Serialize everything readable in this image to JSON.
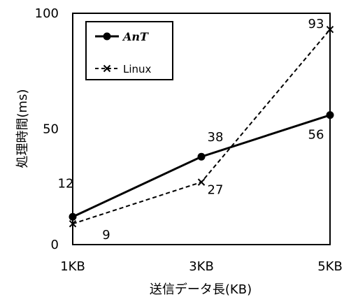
{
  "chart_data": {
    "type": "line",
    "categories": [
      "1KB",
      "3KB",
      "5KB"
    ],
    "xlabel": "送信データ長(KB)",
    "ylabel": "処理時間(ms)",
    "ylim": [
      0,
      100
    ],
    "yticks": [
      0,
      50,
      100
    ],
    "legend_position": "top-left",
    "grid": false,
    "series": [
      {
        "name": "AnT",
        "values": [
          12,
          38,
          56
        ],
        "data_labels": [
          "12",
          "38",
          "56"
        ],
        "color": "#000000",
        "line_style": "solid",
        "marker": "circle"
      },
      {
        "name": "Linux",
        "values": [
          9,
          27,
          93
        ],
        "data_labels": [
          "9",
          "27",
          "93"
        ],
        "color": "#000000",
        "line_style": "dashed",
        "marker": "x"
      }
    ]
  }
}
